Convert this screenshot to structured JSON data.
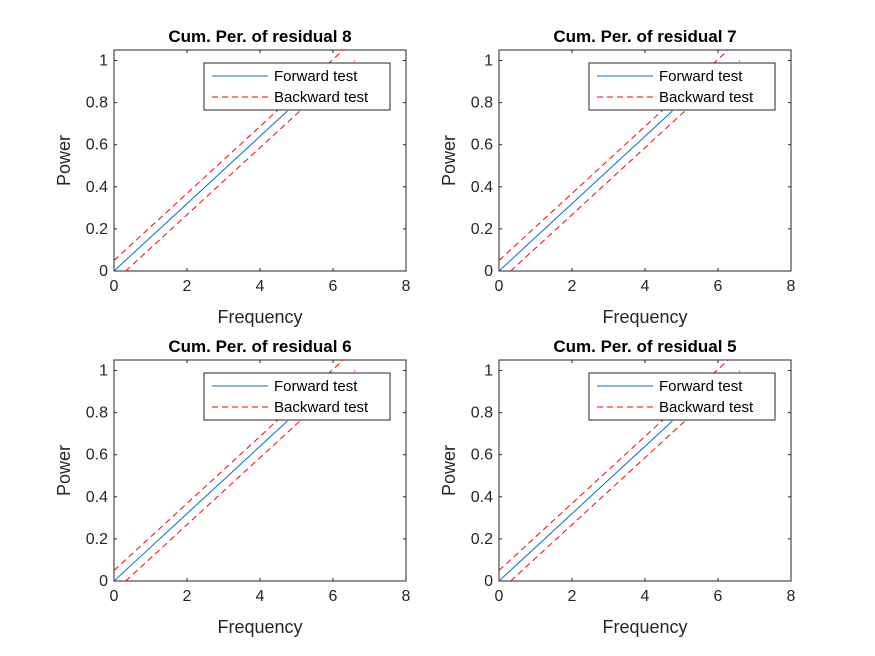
{
  "chart_data": [
    {
      "type": "line",
      "title": "Cum. Per. of residual 8",
      "xlabel": "Frequency",
      "ylabel": "Power",
      "xlim": [
        0,
        8
      ],
      "ylim": [
        0,
        1.05
      ],
      "xticks": [
        "0",
        "2",
        "4",
        "6",
        "8"
      ],
      "yticks": [
        "0",
        "0.2",
        "0.4",
        "0.6",
        "0.8",
        "1"
      ],
      "legend_position": "top-right",
      "series": [
        {
          "name": "Forward test",
          "style": "solid",
          "color": "#0072BD",
          "x": [
            0,
            4.75
          ],
          "y": [
            0,
            0.76
          ]
        },
        {
          "name": "Backward test",
          "style": "dashed",
          "color": "#FF0000",
          "x": [
            0,
            6.28
          ],
          "y": [
            0.05,
            1.05
          ]
        },
        {
          "name": "",
          "style": "dashed",
          "color": "#FF0000",
          "x": [
            0.32,
            6.6
          ],
          "y": [
            0,
            1.0
          ]
        }
      ]
    },
    {
      "type": "line",
      "title": "Cum. Per. of residual 7",
      "xlabel": "Frequency",
      "ylabel": "Power",
      "xlim": [
        0,
        8
      ],
      "ylim": [
        0,
        1.05
      ],
      "xticks": [
        "0",
        "2",
        "4",
        "6",
        "8"
      ],
      "yticks": [
        "0",
        "0.2",
        "0.4",
        "0.6",
        "0.8",
        "1"
      ],
      "legend_position": "top-right",
      "series": [
        {
          "name": "Forward test",
          "style": "solid",
          "color": "#0072BD",
          "x": [
            0,
            4.75
          ],
          "y": [
            0,
            0.76
          ]
        },
        {
          "name": "Backward test",
          "style": "dashed",
          "color": "#FF0000",
          "x": [
            0,
            6.28
          ],
          "y": [
            0.05,
            1.05
          ]
        },
        {
          "name": "",
          "style": "dashed",
          "color": "#FF0000",
          "x": [
            0.32,
            6.6
          ],
          "y": [
            0,
            1.0
          ]
        }
      ]
    },
    {
      "type": "line",
      "title": "Cum. Per. of residual 6",
      "xlabel": "Frequency",
      "ylabel": "Power",
      "xlim": [
        0,
        8
      ],
      "ylim": [
        0,
        1.05
      ],
      "xticks": [
        "0",
        "2",
        "4",
        "6",
        "8"
      ],
      "yticks": [
        "0",
        "0.2",
        "0.4",
        "0.6",
        "0.8",
        "1"
      ],
      "legend_position": "top-right",
      "series": [
        {
          "name": "Forward test",
          "style": "solid",
          "color": "#0072BD",
          "x": [
            0,
            4.75
          ],
          "y": [
            0,
            0.76
          ]
        },
        {
          "name": "Backward test",
          "style": "dashed",
          "color": "#FF0000",
          "x": [
            0,
            6.28
          ],
          "y": [
            0.05,
            1.05
          ]
        },
        {
          "name": "",
          "style": "dashed",
          "color": "#FF0000",
          "x": [
            0.32,
            6.6
          ],
          "y": [
            0,
            1.0
          ]
        }
      ]
    },
    {
      "type": "line",
      "title": "Cum. Per. of residual 5",
      "xlabel": "Frequency",
      "ylabel": "Power",
      "xlim": [
        0,
        8
      ],
      "ylim": [
        0,
        1.05
      ],
      "xticks": [
        "0",
        "2",
        "4",
        "6",
        "8"
      ],
      "yticks": [
        "0",
        "0.2",
        "0.4",
        "0.6",
        "0.8",
        "1"
      ],
      "legend_position": "top-right",
      "series": [
        {
          "name": "Forward test",
          "style": "solid",
          "color": "#0072BD",
          "x": [
            0,
            4.75
          ],
          "y": [
            0,
            0.76
          ]
        },
        {
          "name": "Backward test",
          "style": "dashed",
          "color": "#FF0000",
          "x": [
            0,
            6.28
          ],
          "y": [
            0.05,
            1.05
          ]
        },
        {
          "name": "",
          "style": "dashed",
          "color": "#FF0000",
          "x": [
            0.32,
            6.6
          ],
          "y": [
            0,
            1.0
          ]
        }
      ]
    }
  ]
}
